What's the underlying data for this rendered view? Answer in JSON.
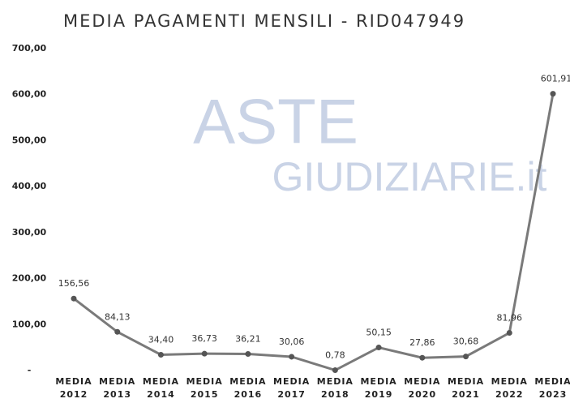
{
  "chart_data": {
    "type": "line",
    "title": "MEDIA PAGAMENTI MENSILI - RID047949",
    "watermark": [
      "ASTE",
      "GIUDIZIARIE.it"
    ],
    "categories": [
      "MEDIA 2012",
      "MEDIA 2013",
      "MEDIA 2014",
      "MEDIA 2015",
      "MEDIA 2016",
      "MEDIA 2017",
      "MEDIA 2018",
      "MEDIA 2019",
      "MEDIA 2020",
      "MEDIA 2021",
      "MEDIA 2022",
      "MEDIA 2023"
    ],
    "values": [
      156.56,
      84.13,
      34.4,
      36.73,
      36.21,
      30.06,
      0.78,
      50.15,
      27.86,
      30.68,
      81.96,
      601.91
    ],
    "value_labels": [
      "156,56",
      "84,13",
      "34,40",
      "36,73",
      "36,21",
      "30,06",
      "0,78",
      "50,15",
      "27,86",
      "30,68",
      "81,96",
      "601,91"
    ],
    "color": "#7a7a7a",
    "ylim": [
      0,
      700
    ],
    "yticks": [
      {
        "value": 0,
        "label": "-"
      },
      {
        "value": 100,
        "label": "100,00"
      },
      {
        "value": 200,
        "label": "200,00"
      },
      {
        "value": 300,
        "label": "300,00"
      },
      {
        "value": 400,
        "label": "400,00"
      },
      {
        "value": 500,
        "label": "500,00"
      },
      {
        "value": 600,
        "label": "600,00"
      },
      {
        "value": 700,
        "label": "700,00"
      }
    ]
  }
}
